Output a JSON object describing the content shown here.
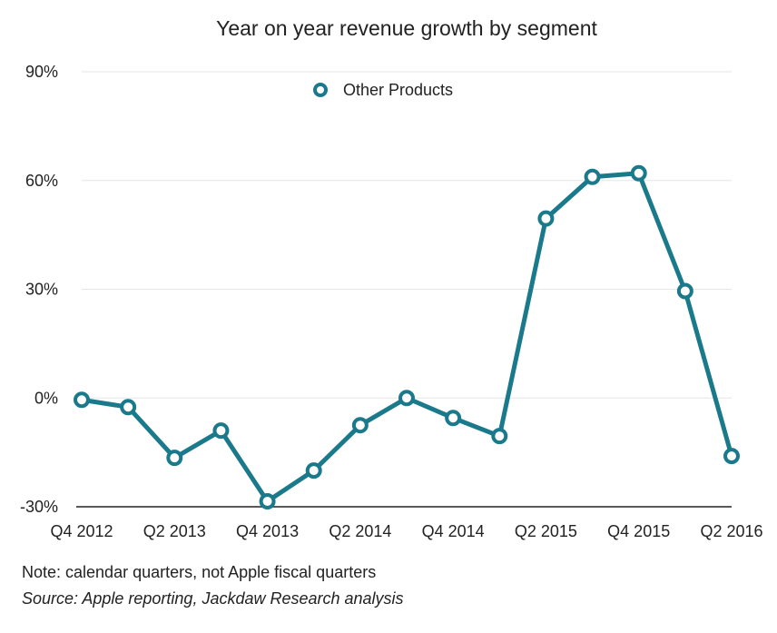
{
  "chart_data": {
    "type": "line",
    "title": "Year on year revenue growth by segment",
    "categories": [
      "Q4 2012",
      "Q1 2013",
      "Q2 2013",
      "Q3 2013",
      "Q4 2013",
      "Q1 2014",
      "Q2 2014",
      "Q3 2014",
      "Q4 2014",
      "Q1 2015",
      "Q2 2015",
      "Q3 2015",
      "Q4 2015",
      "Q1 2016",
      "Q2 2016"
    ],
    "x_tick_labels": [
      "Q4 2012",
      "Q2 2013",
      "Q4 2013",
      "Q2 2014",
      "Q4 2014",
      "Q2 2015",
      "Q4 2015",
      "Q2 2016"
    ],
    "series": [
      {
        "name": "Other Products",
        "color": "#1a7a8c",
        "values": [
          -0.5,
          -2.5,
          -16.5,
          -9,
          -28.5,
          -20,
          -7.5,
          0,
          -5.5,
          -10.5,
          49.5,
          61,
          62,
          29.5,
          -16
        ]
      }
    ],
    "y_ticks": [
      "90%",
      "60%",
      "30%",
      "0%",
      "-30%"
    ],
    "y_tick_values": [
      90,
      60,
      30,
      0,
      -30
    ],
    "ylim": [
      -30,
      90
    ],
    "xlabel": "",
    "ylabel": "",
    "grid": true,
    "legend_position": "top-center"
  },
  "footnotes": {
    "note": "Note: calendar quarters, not Apple fiscal quarters",
    "source": "Source: Apple reporting, Jackdaw Research analysis"
  }
}
